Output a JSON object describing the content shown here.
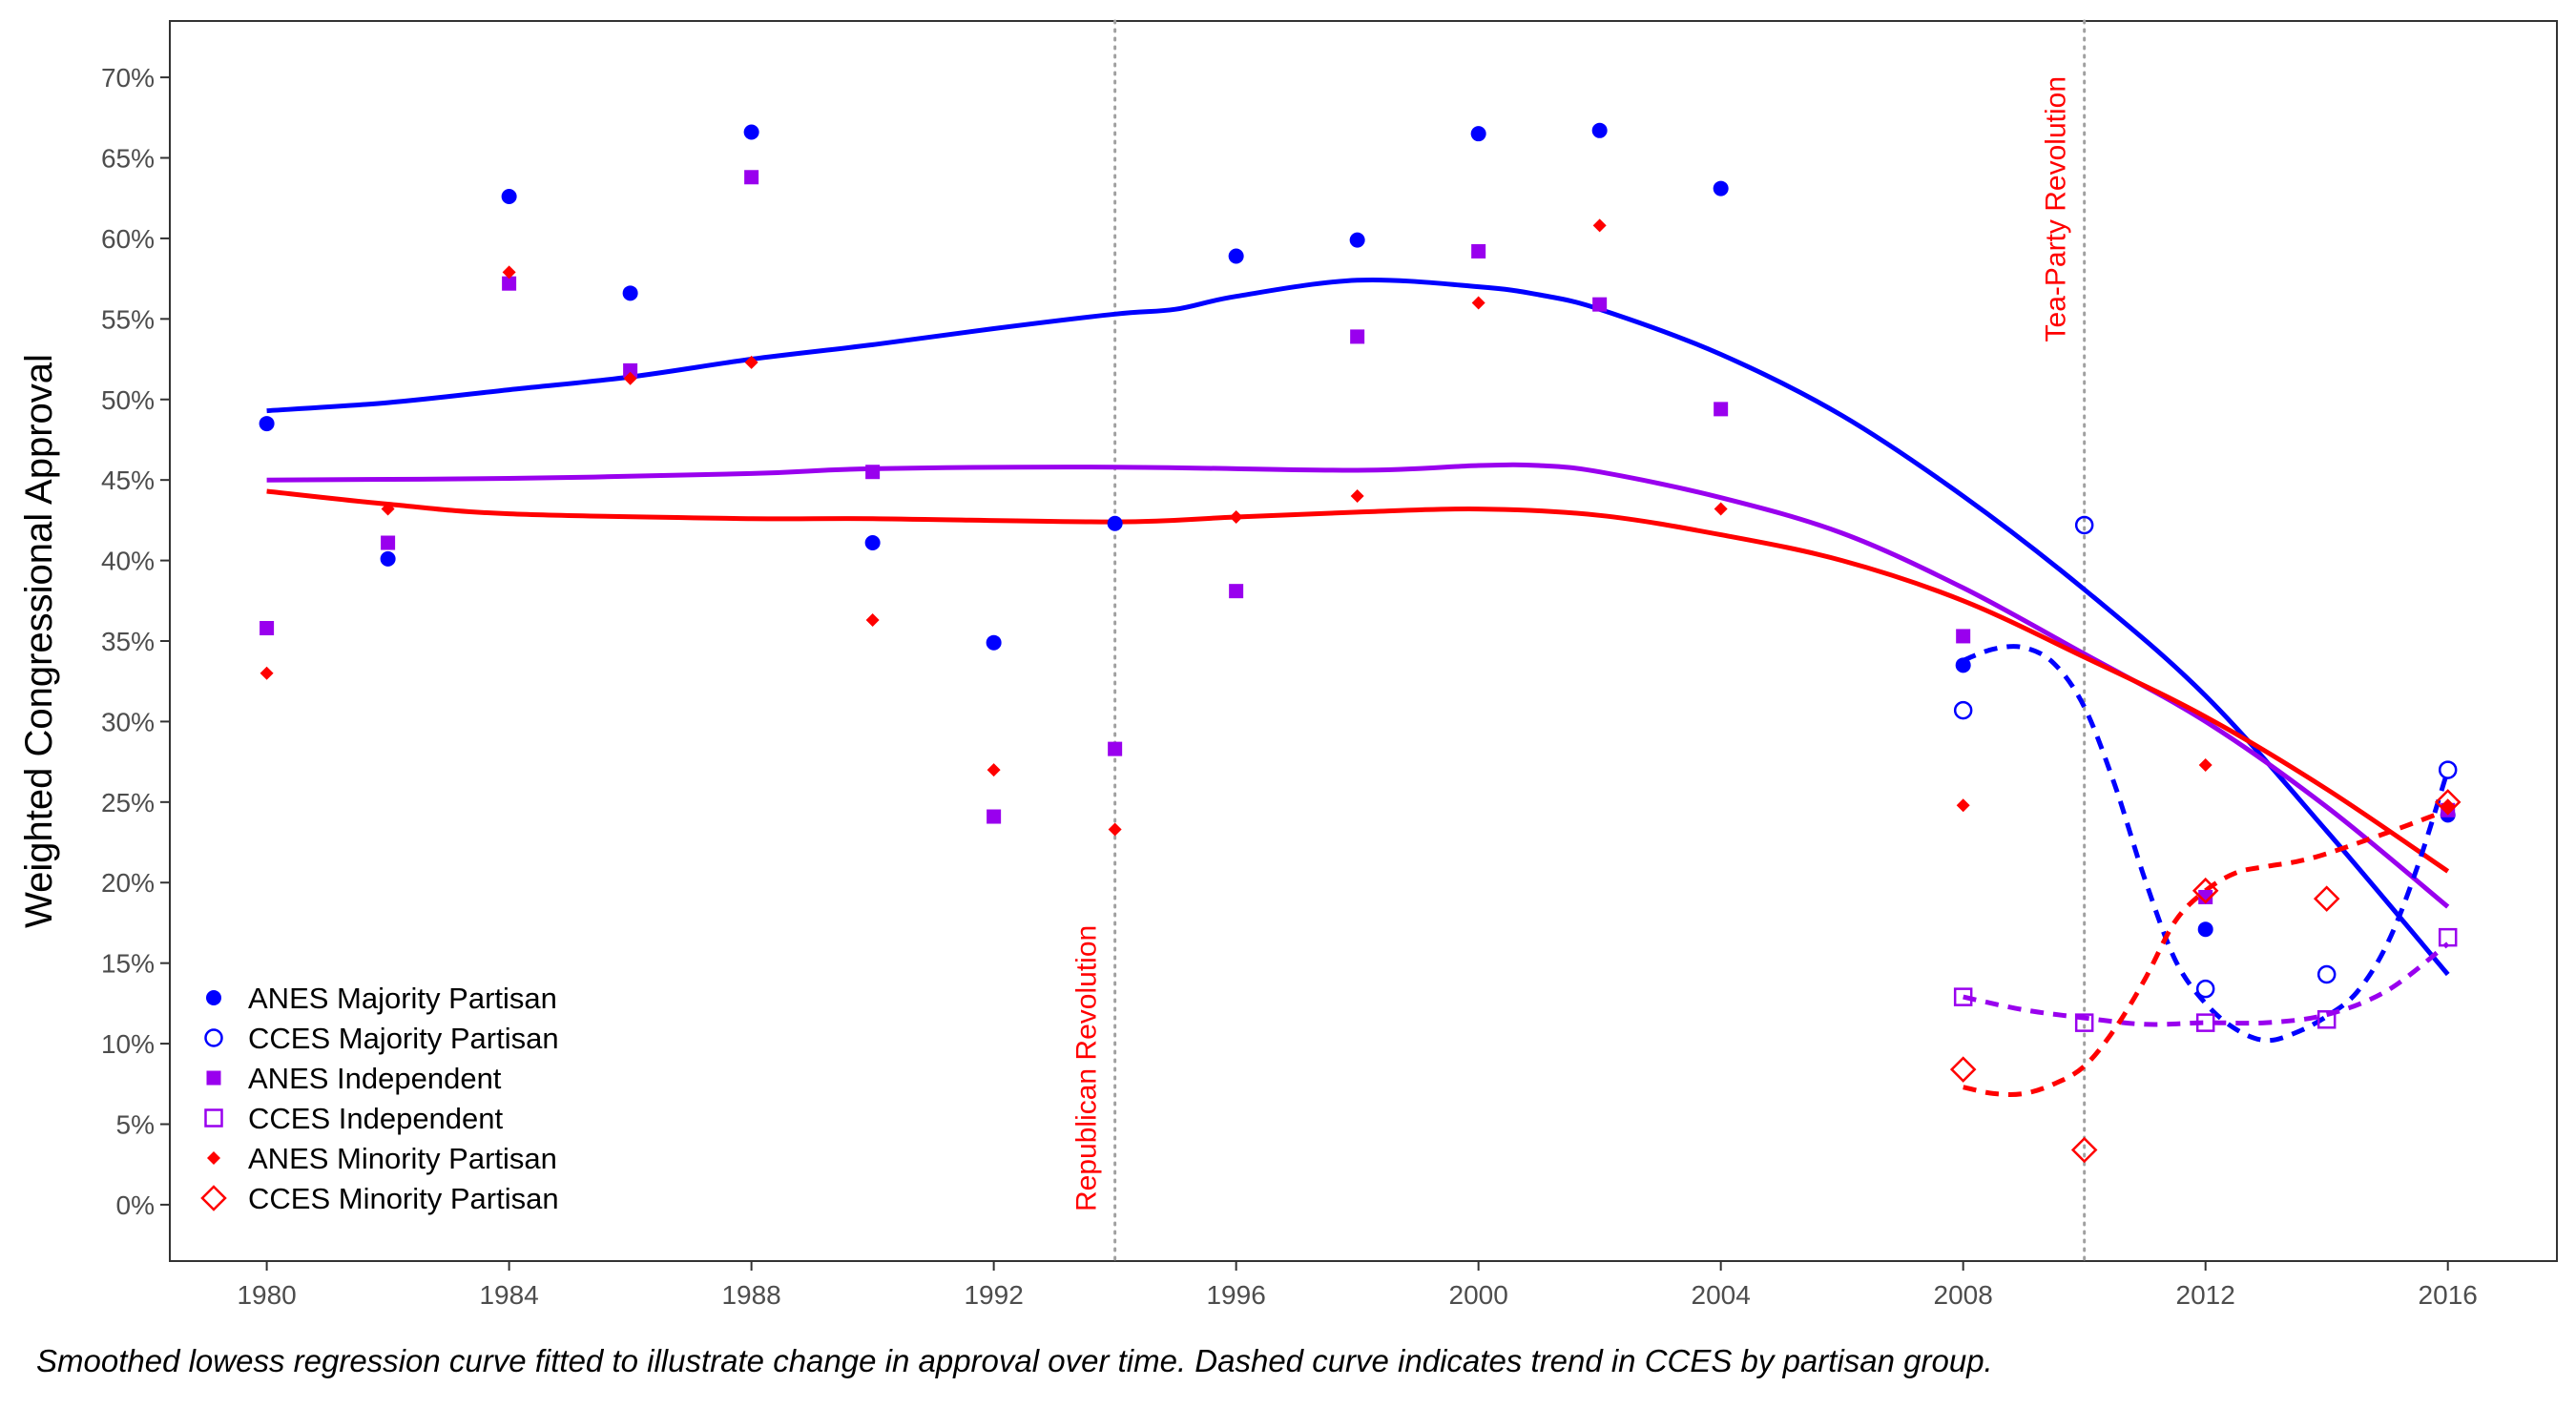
{
  "chart_data": {
    "type": "scatter",
    "ylabel": "Weighted Congressional Approval",
    "xlabel": "",
    "xlim": [
      1978.4,
      2017.8
    ],
    "ylim": [
      -3.5,
      73.5
    ],
    "x_ticks": [
      1980,
      1984,
      1988,
      1992,
      1996,
      2000,
      2004,
      2008,
      2012,
      2016
    ],
    "y_ticks": [
      0,
      5,
      10,
      15,
      20,
      25,
      30,
      35,
      40,
      45,
      50,
      55,
      60,
      65,
      70
    ],
    "y_tick_labels": [
      "0%",
      "5%",
      "10%",
      "15%",
      "20%",
      "25%",
      "30%",
      "35%",
      "40%",
      "45%",
      "50%",
      "55%",
      "60%",
      "65%",
      "70%"
    ],
    "grid": false,
    "legend_position": "bottom-left",
    "annotations": [
      {
        "x": 1994,
        "text": "Republican Revolution",
        "color": "#ff0000",
        "line_style": "dotted"
      },
      {
        "x": 2010,
        "text": "Tea-Party Revolution",
        "color": "#ff0000",
        "line_style": "dotted"
      }
    ],
    "series": [
      {
        "name": "ANES Majority Partisan",
        "color": "#0000ff",
        "marker": "circle-filled",
        "x": [
          1980,
          1982,
          1984,
          1986,
          1988,
          1990,
          1992,
          1994,
          1996,
          1998,
          2000,
          2002,
          2004,
          2008,
          2012,
          2016
        ],
        "y": [
          48.5,
          40.1,
          62.6,
          56.6,
          66.6,
          41.1,
          34.9,
          42.3,
          58.9,
          59.9,
          66.5,
          66.7,
          63.1,
          33.5,
          17.1,
          24.2
        ]
      },
      {
        "name": "CCES Majority Partisan",
        "color": "#0000ff",
        "marker": "circle-open",
        "x": [
          2008,
          2010,
          2012,
          2014,
          2016
        ],
        "y": [
          30.7,
          42.2,
          13.4,
          14.3,
          27.0
        ]
      },
      {
        "name": "ANES Independent",
        "color": "#9900ee",
        "marker": "square-filled",
        "x": [
          1980,
          1982,
          1984,
          1986,
          1988,
          1990,
          1992,
          1994,
          1996,
          1998,
          2000,
          2002,
          2004,
          2008,
          2012,
          2016
        ],
        "y": [
          35.8,
          41.1,
          57.2,
          51.8,
          63.8,
          45.5,
          24.1,
          28.3,
          38.1,
          53.9,
          59.2,
          55.9,
          49.4,
          35.3,
          19.1,
          24.5
        ]
      },
      {
        "name": "CCES Independent",
        "color": "#9900ee",
        "marker": "square-open",
        "x": [
          2008,
          2010,
          2012,
          2014,
          2016
        ],
        "y": [
          12.9,
          11.3,
          11.3,
          11.5,
          16.6
        ]
      },
      {
        "name": "ANES Minority Partisan",
        "color": "#ff0000",
        "marker": "diamond-filled",
        "x": [
          1980,
          1982,
          1984,
          1986,
          1988,
          1990,
          1992,
          1994,
          1996,
          1998,
          2000,
          2002,
          2004,
          2008,
          2012,
          2016
        ],
        "y": [
          33.0,
          43.2,
          57.9,
          51.3,
          52.3,
          36.3,
          27.0,
          23.3,
          42.7,
          44.0,
          56.0,
          60.8,
          43.2,
          24.8,
          27.3,
          24.8
        ]
      },
      {
        "name": "CCES Minority Partisan",
        "color": "#ff0000",
        "marker": "diamond-open",
        "x": [
          2008,
          2010,
          2012,
          2014,
          2016
        ],
        "y": [
          8.4,
          3.4,
          19.5,
          19.0,
          25.0
        ]
      }
    ],
    "trend_lines": [
      {
        "color": "#0000ff",
        "style": "solid",
        "x": [
          1980,
          1982,
          1984,
          1986,
          1988,
          1990,
          1992,
          1994,
          1995,
          1996,
          1998,
          2000,
          2001,
          2002,
          2004,
          2006,
          2008,
          2010,
          2012,
          2014,
          2016
        ],
        "y": [
          49.3,
          49.8,
          50.6,
          51.4,
          52.5,
          53.4,
          54.4,
          55.3,
          55.6,
          56.4,
          57.4,
          57.0,
          56.5,
          55.6,
          52.8,
          49.0,
          44.0,
          38.2,
          31.6,
          23.2,
          14.3
        ]
      },
      {
        "color": "#9900ee",
        "style": "solid",
        "x": [
          1980,
          1984,
          1988,
          1990,
          1994,
          1998,
          2000,
          2001,
          2002,
          2004,
          2006,
          2008,
          2010,
          2012,
          2014,
          2016
        ],
        "y": [
          45.0,
          45.1,
          45.4,
          45.7,
          45.8,
          45.6,
          45.9,
          45.9,
          45.5,
          43.9,
          41.7,
          38.3,
          34.2,
          30.0,
          24.7,
          18.5
        ]
      },
      {
        "color": "#ff0000",
        "style": "solid",
        "x": [
          1980,
          1982,
          1984,
          1988,
          1990,
          1994,
          1996,
          1998,
          2000,
          2002,
          2004,
          2006,
          2008,
          2010,
          2012,
          2014,
          2016
        ],
        "y": [
          44.3,
          43.5,
          42.9,
          42.6,
          42.6,
          42.4,
          42.7,
          43.0,
          43.2,
          42.8,
          41.6,
          40.0,
          37.5,
          34.0,
          30.3,
          25.8,
          20.7
        ]
      },
      {
        "color": "#0000ff",
        "style": "dashed",
        "x": [
          2008,
          2008.5,
          2009,
          2009.5,
          2010,
          2010.5,
          2011,
          2011.5,
          2012,
          2012.5,
          2013,
          2013.5,
          2014,
          2014.5,
          2015,
          2015.5,
          2016
        ],
        "y": [
          33.8,
          34.5,
          34.6,
          33.6,
          30.9,
          26.1,
          20.2,
          15.2,
          12.5,
          10.9,
          10.2,
          10.7,
          11.7,
          13.2,
          16.2,
          21.0,
          27.0
        ]
      },
      {
        "color": "#9900ee",
        "style": "dashed",
        "x": [
          2008,
          2009,
          2010,
          2011,
          2012,
          2013,
          2014,
          2015,
          2016
        ],
        "y": [
          12.9,
          12.1,
          11.6,
          11.2,
          11.3,
          11.3,
          11.8,
          13.3,
          16.2
        ]
      },
      {
        "color": "#ff0000",
        "style": "dashed",
        "x": [
          2008,
          2008.5,
          2009,
          2009.5,
          2010,
          2010.5,
          2011,
          2011.5,
          2012,
          2012.5,
          2013,
          2013.5,
          2014,
          2015,
          2016
        ],
        "y": [
          7.3,
          6.9,
          6.9,
          7.5,
          8.6,
          10.9,
          14.0,
          17.6,
          19.5,
          20.6,
          21.0,
          21.3,
          21.8,
          23.1,
          24.5
        ]
      }
    ]
  },
  "caption": "Smoothed lowess regression curve fitted to illustrate change in approval over time. Dashed curve indicates trend in CCES by partisan group."
}
